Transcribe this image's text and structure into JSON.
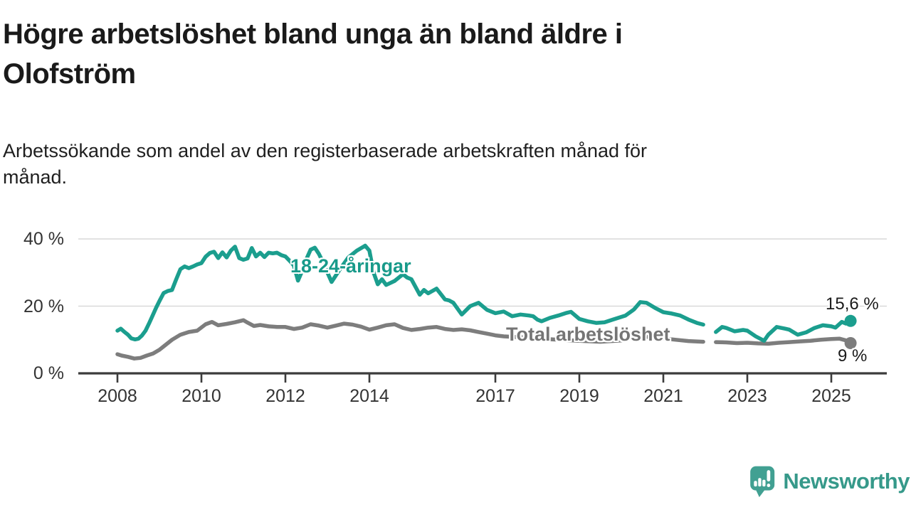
{
  "header": {
    "title_lines": [
      "Högre arbetslöshet bland unga än bland äldre i",
      "Olofström"
    ],
    "subtitle_lines": [
      "Arbetssökande som andel av den registerbaserade arbetskraften månad för",
      "månad."
    ]
  },
  "chart_data": {
    "type": "line",
    "title": "Högre arbetslöshet bland unga än bland äldre i Olofström",
    "subtitle": "Arbetssökande som andel av den registerbaserade arbetskraften månad för månad.",
    "grid": "horizontal-only",
    "colors": {
      "young": "#1b9e8e",
      "total": "#7d7d7d",
      "axis": "#3c3c3c",
      "gridline": "#d9d9d9",
      "tick_text": "#333333",
      "young_label_text": "#189a8a",
      "total_label_text": "#757575"
    },
    "x_axis": {
      "range_years": [
        2007.1,
        2026.3
      ],
      "ticks": [
        2008,
        2010,
        2012,
        2014,
        2017,
        2019,
        2021,
        2023,
        2025
      ]
    },
    "y_axis": {
      "range_percent": [
        0,
        42
      ],
      "ticks": [
        {
          "value": 0,
          "label": "0 %"
        },
        {
          "value": 20,
          "label": "20 %"
        },
        {
          "value": 40,
          "label": "40 %"
        }
      ]
    },
    "series": [
      {
        "name": "Total arbetslöshet",
        "color_key": "total",
        "end_label": "9 %",
        "unit": "%",
        "segments": [
          [
            [
              2008.0,
              5.7
            ],
            [
              2008.1,
              5.3
            ],
            [
              2008.25,
              4.9
            ],
            [
              2008.4,
              4.4
            ],
            [
              2008.55,
              4.6
            ],
            [
              2008.7,
              5.3
            ],
            [
              2008.85,
              5.9
            ],
            [
              2009.0,
              7.0
            ],
            [
              2009.1,
              8.0
            ],
            [
              2009.3,
              10.0
            ],
            [
              2009.5,
              11.5
            ],
            [
              2009.7,
              12.3
            ],
            [
              2009.9,
              12.7
            ],
            [
              2010.1,
              14.6
            ],
            [
              2010.25,
              15.3
            ],
            [
              2010.4,
              14.3
            ],
            [
              2010.6,
              14.7
            ],
            [
              2010.8,
              15.2
            ],
            [
              2011.0,
              15.8
            ],
            [
              2011.1,
              15.1
            ],
            [
              2011.25,
              14.1
            ],
            [
              2011.4,
              14.4
            ],
            [
              2011.6,
              14.0
            ],
            [
              2011.8,
              13.8
            ],
            [
              2012.0,
              13.8
            ],
            [
              2012.2,
              13.2
            ],
            [
              2012.4,
              13.6
            ],
            [
              2012.6,
              14.6
            ],
            [
              2012.8,
              14.2
            ],
            [
              2013.0,
              13.6
            ],
            [
              2013.2,
              14.2
            ],
            [
              2013.4,
              14.8
            ],
            [
              2013.6,
              14.5
            ],
            [
              2013.8,
              13.9
            ],
            [
              2014.0,
              13.0
            ],
            [
              2014.2,
              13.6
            ],
            [
              2014.4,
              14.3
            ],
            [
              2014.6,
              14.6
            ],
            [
              2014.8,
              13.5
            ],
            [
              2015.0,
              12.9
            ],
            [
              2015.2,
              13.2
            ],
            [
              2015.4,
              13.6
            ],
            [
              2015.6,
              13.8
            ],
            [
              2015.8,
              13.2
            ],
            [
              2016.0,
              12.9
            ],
            [
              2016.2,
              13.1
            ],
            [
              2016.4,
              12.8
            ],
            [
              2016.6,
              12.3
            ],
            [
              2016.8,
              11.8
            ],
            [
              2017.0,
              11.3
            ],
            [
              2017.2,
              11.0
            ],
            [
              2017.5,
              10.8
            ],
            [
              2018.0,
              10.4
            ],
            [
              2018.5,
              10.0
            ],
            [
              2019.0,
              9.7
            ],
            [
              2019.5,
              9.4
            ],
            [
              2020.0,
              9.8
            ],
            [
              2020.4,
              11.0
            ],
            [
              2020.7,
              10.8
            ],
            [
              2021.0,
              10.4
            ],
            [
              2021.3,
              10.0
            ],
            [
              2021.6,
              9.6
            ],
            [
              2021.95,
              9.4
            ]
          ],
          [
            [
              2022.25,
              9.3
            ],
            [
              2022.5,
              9.2
            ],
            [
              2022.75,
              9.0
            ],
            [
              2023.0,
              9.1
            ],
            [
              2023.25,
              8.9
            ],
            [
              2023.5,
              8.8
            ],
            [
              2023.75,
              9.1
            ],
            [
              2024.0,
              9.3
            ],
            [
              2024.25,
              9.5
            ],
            [
              2024.5,
              9.7
            ],
            [
              2024.75,
              10.0
            ],
            [
              2025.0,
              10.2
            ],
            [
              2025.2,
              10.3
            ],
            [
              2025.35,
              9.8
            ],
            [
              2025.46,
              9.0
            ]
          ]
        ]
      },
      {
        "name": "18-24-åringar",
        "color_key": "young",
        "end_label": "15,6 %",
        "unit": "%",
        "segments": [
          [
            [
              2008.0,
              12.7
            ],
            [
              2008.08,
              13.3
            ],
            [
              2008.17,
              12.3
            ],
            [
              2008.25,
              11.5
            ],
            [
              2008.33,
              10.4
            ],
            [
              2008.42,
              10.1
            ],
            [
              2008.5,
              10.3
            ],
            [
              2008.58,
              11.2
            ],
            [
              2008.67,
              12.7
            ],
            [
              2008.75,
              14.8
            ],
            [
              2008.83,
              17.0
            ],
            [
              2008.92,
              19.5
            ],
            [
              2009.0,
              21.5
            ],
            [
              2009.1,
              23.9
            ],
            [
              2009.2,
              24.5
            ],
            [
              2009.3,
              24.8
            ],
            [
              2009.4,
              28.0
            ],
            [
              2009.5,
              31.0
            ],
            [
              2009.6,
              31.8
            ],
            [
              2009.7,
              31.3
            ],
            [
              2009.8,
              31.8
            ],
            [
              2009.9,
              32.4
            ],
            [
              2010.0,
              32.8
            ],
            [
              2010.1,
              34.7
            ],
            [
              2010.2,
              35.8
            ],
            [
              2010.3,
              36.2
            ],
            [
              2010.4,
              34.3
            ],
            [
              2010.5,
              36.0
            ],
            [
              2010.6,
              34.5
            ],
            [
              2010.7,
              36.5
            ],
            [
              2010.8,
              37.7
            ],
            [
              2010.9,
              34.3
            ],
            [
              2011.0,
              33.8
            ],
            [
              2011.1,
              34.2
            ],
            [
              2011.2,
              37.3
            ],
            [
              2011.3,
              34.8
            ],
            [
              2011.4,
              35.9
            ],
            [
              2011.5,
              34.6
            ],
            [
              2011.6,
              35.9
            ],
            [
              2011.7,
              35.7
            ],
            [
              2011.8,
              35.9
            ],
            [
              2011.9,
              35.2
            ],
            [
              2012.0,
              34.8
            ],
            [
              2012.1,
              33.5
            ],
            [
              2012.2,
              32.1
            ],
            [
              2012.3,
              27.6
            ],
            [
              2012.4,
              30.5
            ],
            [
              2012.5,
              34.0
            ],
            [
              2012.6,
              36.8
            ],
            [
              2012.7,
              37.4
            ],
            [
              2012.8,
              35.5
            ],
            [
              2012.9,
              33.0
            ],
            [
              2013.0,
              30.0
            ],
            [
              2013.1,
              27.2
            ],
            [
              2013.3,
              31.0
            ],
            [
              2013.5,
              34.5
            ],
            [
              2013.7,
              36.5
            ],
            [
              2013.9,
              38.0
            ],
            [
              2014.0,
              36.5
            ],
            [
              2014.1,
              30.0
            ],
            [
              2014.2,
              26.5
            ],
            [
              2014.3,
              28.0
            ],
            [
              2014.4,
              26.3
            ],
            [
              2014.6,
              27.5
            ],
            [
              2014.8,
              29.5
            ],
            [
              2014.9,
              28.5
            ],
            [
              2015.0,
              28.0
            ],
            [
              2015.2,
              23.4
            ],
            [
              2015.3,
              24.8
            ],
            [
              2015.4,
              23.8
            ],
            [
              2015.6,
              25.2
            ],
            [
              2015.8,
              22.0
            ],
            [
              2015.9,
              21.7
            ],
            [
              2016.0,
              21.0
            ],
            [
              2016.2,
              17.5
            ],
            [
              2016.4,
              20.0
            ],
            [
              2016.6,
              21.0
            ],
            [
              2016.8,
              18.9
            ],
            [
              2017.0,
              17.9
            ],
            [
              2017.2,
              18.4
            ],
            [
              2017.4,
              17.0
            ],
            [
              2017.6,
              17.5
            ],
            [
              2017.8,
              17.2
            ],
            [
              2017.9,
              17.0
            ],
            [
              2018.0,
              16.0
            ],
            [
              2018.1,
              15.5
            ],
            [
              2018.3,
              16.5
            ],
            [
              2018.5,
              17.2
            ],
            [
              2018.7,
              18.0
            ],
            [
              2018.8,
              18.3
            ],
            [
              2019.0,
              16.2
            ],
            [
              2019.2,
              15.5
            ],
            [
              2019.4,
              15.0
            ],
            [
              2019.6,
              15.2
            ],
            [
              2019.8,
              16.0
            ],
            [
              2020.0,
              16.8
            ],
            [
              2020.1,
              17.2
            ],
            [
              2020.3,
              19.0
            ],
            [
              2020.45,
              21.2
            ],
            [
              2020.6,
              21.0
            ],
            [
              2020.8,
              19.5
            ],
            [
              2021.0,
              18.2
            ],
            [
              2021.2,
              17.8
            ],
            [
              2021.4,
              17.2
            ],
            [
              2021.6,
              16.0
            ],
            [
              2021.8,
              15.0
            ],
            [
              2021.95,
              14.5
            ]
          ],
          [
            [
              2022.25,
              12.3
            ],
            [
              2022.4,
              13.8
            ],
            [
              2022.5,
              13.5
            ],
            [
              2022.7,
              12.5
            ],
            [
              2022.9,
              12.9
            ],
            [
              2023.0,
              12.7
            ],
            [
              2023.2,
              11.0
            ],
            [
              2023.4,
              9.7
            ],
            [
              2023.5,
              11.5
            ],
            [
              2023.7,
              13.8
            ],
            [
              2023.9,
              13.3
            ],
            [
              2024.0,
              13.0
            ],
            [
              2024.2,
              11.5
            ],
            [
              2024.4,
              12.2
            ],
            [
              2024.6,
              13.5
            ],
            [
              2024.8,
              14.3
            ],
            [
              2025.0,
              14.0
            ],
            [
              2025.1,
              13.6
            ],
            [
              2025.25,
              15.3
            ],
            [
              2025.35,
              14.8
            ],
            [
              2025.46,
              15.6
            ]
          ]
        ]
      }
    ],
    "series_labels": {
      "young": "18-24-åringar",
      "total": "Total arbetslöshet"
    },
    "end_values": {
      "young": "15,6 %",
      "total": "9 %"
    }
  },
  "branding": {
    "logo_name": "newsworthy-logo",
    "logo_text": "Newsworthy"
  }
}
